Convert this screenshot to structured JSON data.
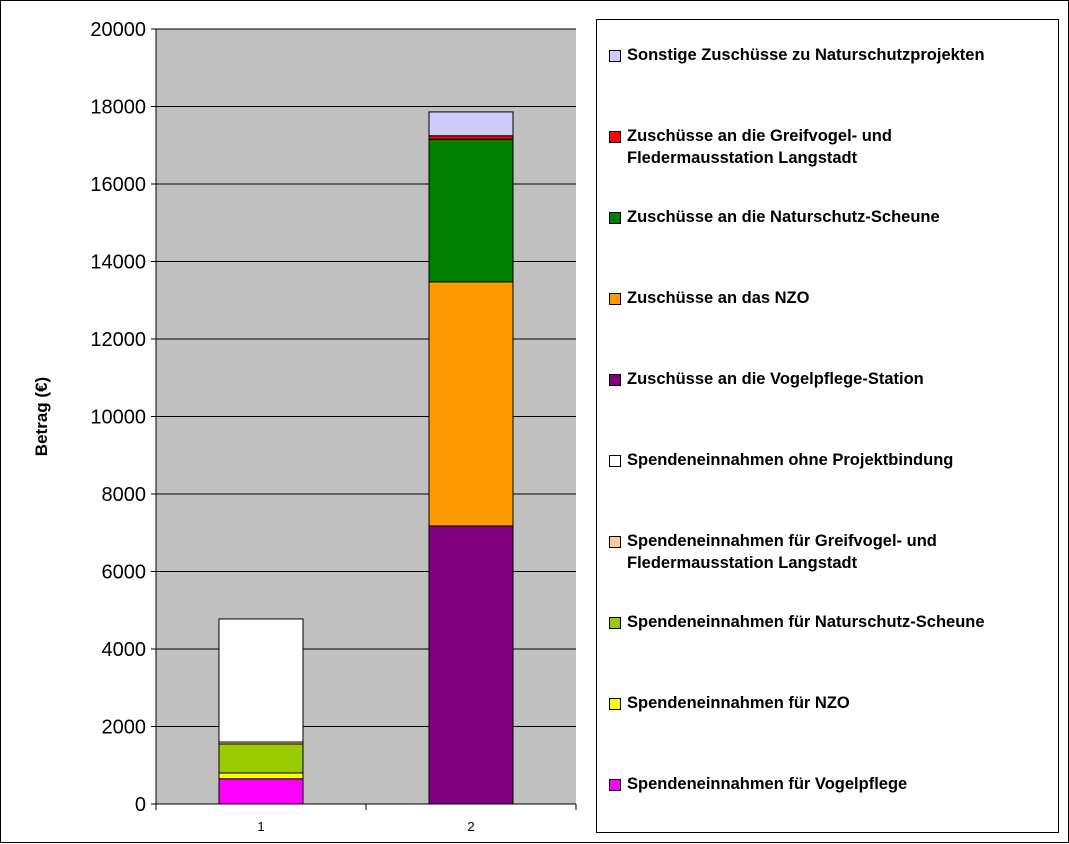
{
  "chart_data": {
    "type": "bar",
    "stacked": true,
    "categories": [
      "1",
      "2"
    ],
    "ylabel": "Betrag (€)",
    "xlabel": "",
    "ylim": [
      0,
      20000
    ],
    "yticks": [
      "0",
      "2000",
      "4000",
      "6000",
      "8000",
      "10000",
      "12000",
      "14000",
      "16000",
      "18000",
      "20000"
    ],
    "grid": true,
    "legend_position": "right",
    "series": [
      {
        "name": "Spendeneinnahmen für Vogelpflege",
        "color": "#FF00FF",
        "values": [
          650,
          0
        ]
      },
      {
        "name": "Spendeneinnahmen für NZO",
        "color": "#FFFF00",
        "values": [
          150,
          0
        ]
      },
      {
        "name": "Spendeneinnahmen für Naturschutz-Scheune",
        "color": "#99CC00",
        "values": [
          750,
          0
        ]
      },
      {
        "name": "Spendeneinnahmen für Greifvogel- und Fledermausstation Langstadt",
        "color": "#FFCC99",
        "values": [
          50,
          0
        ]
      },
      {
        "name": "Spendeneinnahmen ohne Projektbindung",
        "color": "#FFFFFF",
        "values": [
          3175,
          0
        ]
      },
      {
        "name": "Zuschüsse an die Vogelpflege-Station",
        "color": "#800080",
        "values": [
          0,
          7175
        ]
      },
      {
        "name": "Zuschüsse an das NZO",
        "color": "#FF9900",
        "values": [
          0,
          6300
        ]
      },
      {
        "name": "Zuschüsse an die Naturschutz-Scheune",
        "color": "#008000",
        "values": [
          0,
          3680
        ]
      },
      {
        "name": "Zuschüsse an die Greifvogel- und Fledermausstation Langstadt",
        "color": "#FF0000",
        "values": [
          0,
          90
        ]
      },
      {
        "name": "Sonstige Zuschüsse zu Naturschutzprojekten",
        "color": "#CCCCFF",
        "values": [
          0,
          615
        ]
      }
    ],
    "legend_lines": [
      [
        "Sonstige Zuschüsse zu Naturschutzprojekten"
      ],
      [
        "Zuschüsse an die Greifvogel- und",
        "Fledermausstation Langstadt"
      ],
      [
        "Zuschüsse an die Naturschutz-Scheune"
      ],
      [
        "Zuschüsse an das NZO"
      ],
      [
        "Zuschüsse an die Vogelpflege-Station"
      ],
      [
        "Spendeneinnahmen ohne Projektbindung"
      ],
      [
        "Spendeneinnahmen für Greifvogel- und",
        "Fledermausstation Langstadt"
      ],
      [
        "Spendeneinnahmen für Naturschutz-Scheune"
      ],
      [
        "Spendeneinnahmen für NZO"
      ],
      [
        "Spendeneinnahmen für Vogelpflege"
      ]
    ]
  }
}
